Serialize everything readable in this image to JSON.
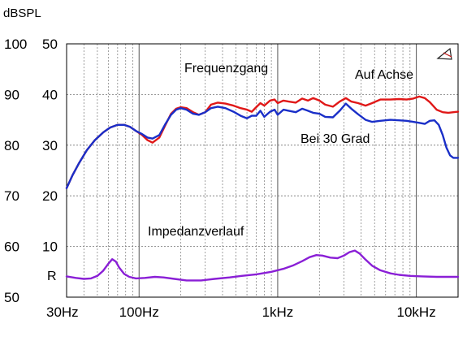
{
  "chart_data": {
    "type": "line",
    "unit_label": "dBSPL",
    "x_scale": "log",
    "xlim": [
      30,
      20000
    ],
    "ylim": [
      50,
      100
    ],
    "x_ticks": [
      {
        "value": 30,
        "label": "30Hz"
      },
      {
        "value": 100,
        "label": "100Hz"
      },
      {
        "value": 1000,
        "label": "1kHz"
      },
      {
        "value": 10000,
        "label": "10kHz"
      }
    ],
    "y_ticks": [
      {
        "value": 100,
        "label": "100",
        "impedance_label": "50"
      },
      {
        "value": 90,
        "label": "90",
        "impedance_label": "40"
      },
      {
        "value": 80,
        "label": "80",
        "impedance_label": "30"
      },
      {
        "value": 70,
        "label": "70",
        "impedance_label": "20"
      },
      {
        "value": 60,
        "label": "60",
        "impedance_label": "10"
      },
      {
        "value": 50,
        "label": "50",
        "impedance_label": ""
      }
    ],
    "r_marker": {
      "label": "R",
      "value": 54.2
    },
    "grid": true,
    "annotations": [
      {
        "text": "Frequenzgang"
      },
      {
        "text": "Auf Achse"
      },
      {
        "text": "Bei 30 Grad"
      },
      {
        "text": "Impedanzverlauf"
      }
    ],
    "series": [
      {
        "name": "Auf Achse",
        "color": "#e01818",
        "points": [
          [
            30,
            71.5
          ],
          [
            33,
            74
          ],
          [
            37,
            76.5
          ],
          [
            42,
            79
          ],
          [
            48,
            81
          ],
          [
            55,
            82.5
          ],
          [
            62,
            83.5
          ],
          [
            70,
            84
          ],
          [
            78,
            84
          ],
          [
            86,
            83.6
          ],
          [
            95,
            82.8
          ],
          [
            105,
            82
          ],
          [
            115,
            81
          ],
          [
            125,
            80.5
          ],
          [
            140,
            81.5
          ],
          [
            155,
            84
          ],
          [
            170,
            86.2
          ],
          [
            185,
            87.2
          ],
          [
            200,
            87.5
          ],
          [
            220,
            87.3
          ],
          [
            245,
            86.5
          ],
          [
            270,
            86
          ],
          [
            300,
            86.5
          ],
          [
            330,
            88
          ],
          [
            370,
            88.4
          ],
          [
            420,
            88.2
          ],
          [
            480,
            87.8
          ],
          [
            540,
            87.3
          ],
          [
            600,
            87
          ],
          [
            650,
            86.6
          ],
          [
            700,
            87.5
          ],
          [
            750,
            88.3
          ],
          [
            800,
            87.8
          ],
          [
            880,
            88.8
          ],
          [
            950,
            89
          ],
          [
            1000,
            88.3
          ],
          [
            1100,
            88.8
          ],
          [
            1200,
            88.6
          ],
          [
            1350,
            88.4
          ],
          [
            1500,
            89.2
          ],
          [
            1650,
            88.8
          ],
          [
            1800,
            89.3
          ],
          [
            2000,
            88.8
          ],
          [
            2200,
            88
          ],
          [
            2500,
            87.6
          ],
          [
            2800,
            88.6
          ],
          [
            3100,
            89.3
          ],
          [
            3400,
            88.6
          ],
          [
            3800,
            88.3
          ],
          [
            4300,
            87.8
          ],
          [
            4800,
            88.3
          ],
          [
            5500,
            89
          ],
          [
            6500,
            89
          ],
          [
            7500,
            89.1
          ],
          [
            8500,
            89
          ],
          [
            9500,
            89.2
          ],
          [
            10500,
            89.6
          ],
          [
            11500,
            89.3
          ],
          [
            12500,
            88.5
          ],
          [
            14000,
            87
          ],
          [
            15500,
            86.5
          ],
          [
            17000,
            86.4
          ],
          [
            18500,
            86.5
          ],
          [
            20000,
            86.6
          ]
        ]
      },
      {
        "name": "Bei 30 Grad",
        "color": "#1a2fc8",
        "points": [
          [
            30,
            71.5
          ],
          [
            33,
            74
          ],
          [
            37,
            76.5
          ],
          [
            42,
            79
          ],
          [
            48,
            81
          ],
          [
            55,
            82.5
          ],
          [
            62,
            83.5
          ],
          [
            70,
            84
          ],
          [
            78,
            84
          ],
          [
            86,
            83.6
          ],
          [
            95,
            82.8
          ],
          [
            105,
            82.2
          ],
          [
            115,
            81.5
          ],
          [
            125,
            81.3
          ],
          [
            140,
            82
          ],
          [
            155,
            84.2
          ],
          [
            170,
            86
          ],
          [
            185,
            87
          ],
          [
            200,
            87.3
          ],
          [
            220,
            87
          ],
          [
            245,
            86.2
          ],
          [
            270,
            86
          ],
          [
            300,
            86.5
          ],
          [
            330,
            87.3
          ],
          [
            370,
            87.6
          ],
          [
            420,
            87.3
          ],
          [
            480,
            86.6
          ],
          [
            540,
            85.8
          ],
          [
            600,
            85.3
          ],
          [
            650,
            85.8
          ],
          [
            700,
            85.8
          ],
          [
            750,
            86.8
          ],
          [
            800,
            85.6
          ],
          [
            880,
            86.6
          ],
          [
            950,
            87
          ],
          [
            1000,
            86
          ],
          [
            1100,
            87
          ],
          [
            1200,
            86.8
          ],
          [
            1350,
            86.5
          ],
          [
            1500,
            87.2
          ],
          [
            1650,
            86.8
          ],
          [
            1800,
            86.4
          ],
          [
            2000,
            86.2
          ],
          [
            2200,
            85.6
          ],
          [
            2500,
            85.5
          ],
          [
            2800,
            86.8
          ],
          [
            3100,
            88.2
          ],
          [
            3400,
            87.2
          ],
          [
            3800,
            86.1
          ],
          [
            4300,
            85
          ],
          [
            4800,
            84.6
          ],
          [
            5500,
            84.8
          ],
          [
            6500,
            85
          ],
          [
            7500,
            84.9
          ],
          [
            8500,
            84.8
          ],
          [
            9500,
            84.6
          ],
          [
            10500,
            84.4
          ],
          [
            11500,
            84.2
          ],
          [
            12500,
            84.8
          ],
          [
            13500,
            84.9
          ],
          [
            14500,
            84
          ],
          [
            15500,
            82
          ],
          [
            16500,
            79.5
          ],
          [
            17500,
            78
          ],
          [
            18500,
            77.5
          ],
          [
            20000,
            77.5
          ]
        ]
      },
      {
        "name": "Impedanzverlauf",
        "color": "#8a1fd6",
        "points": [
          [
            30,
            54.1
          ],
          [
            35,
            53.8
          ],
          [
            40,
            53.6
          ],
          [
            45,
            53.7
          ],
          [
            50,
            54.2
          ],
          [
            55,
            55.2
          ],
          [
            60,
            56.6
          ],
          [
            64,
            57.5
          ],
          [
            68,
            57
          ],
          [
            72,
            55.8
          ],
          [
            78,
            54.6
          ],
          [
            85,
            54
          ],
          [
            95,
            53.7
          ],
          [
            110,
            53.8
          ],
          [
            130,
            54
          ],
          [
            150,
            53.9
          ],
          [
            180,
            53.6
          ],
          [
            220,
            53.3
          ],
          [
            280,
            53.3
          ],
          [
            350,
            53.6
          ],
          [
            450,
            53.9
          ],
          [
            550,
            54.2
          ],
          [
            700,
            54.5
          ],
          [
            900,
            55
          ],
          [
            1100,
            55.6
          ],
          [
            1300,
            56.3
          ],
          [
            1500,
            57.1
          ],
          [
            1700,
            57.9
          ],
          [
            1900,
            58.3
          ],
          [
            2100,
            58.2
          ],
          [
            2400,
            57.8
          ],
          [
            2700,
            57.7
          ],
          [
            3000,
            58.2
          ],
          [
            3300,
            58.9
          ],
          [
            3600,
            59.2
          ],
          [
            3900,
            58.6
          ],
          [
            4300,
            57.4
          ],
          [
            4800,
            56.2
          ],
          [
            5500,
            55.3
          ],
          [
            6500,
            54.7
          ],
          [
            7500,
            54.4
          ],
          [
            9000,
            54.2
          ],
          [
            11000,
            54.1
          ],
          [
            14000,
            54
          ],
          [
            17000,
            54
          ],
          [
            20000,
            54
          ]
        ]
      }
    ]
  }
}
